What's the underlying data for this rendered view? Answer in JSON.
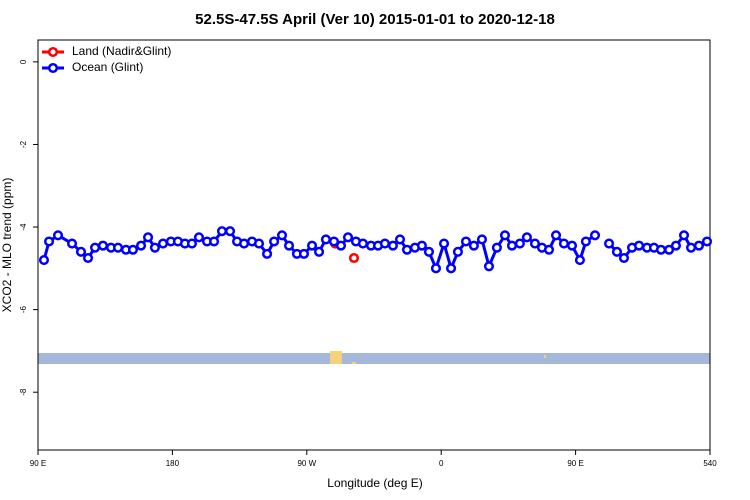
{
  "chart_data": {
    "type": "line",
    "title": "52.5S-47.5S April (Ver 10)   2015-01-01 to 2020-12-18",
    "xlabel": "Longitude (deg E)",
    "ylabel": "XCO2 - MLO trend (ppm)",
    "xlim": [
      90,
      540
    ],
    "ylim": [
      -9.4,
      0.53
    ],
    "xticks": [
      {
        "value": 90,
        "label": "90 E"
      },
      180,
      {
        "value": 270,
        "label": "90 W"
      },
      {
        "value": 360,
        "label": "0"
      },
      {
        "value": 450,
        "label": "90 E"
      },
      540
    ],
    "yticks": [
      0,
      -2,
      -4,
      -6,
      -8
    ],
    "legend": "top-left",
    "series": [
      {
        "name": "Land (Nadir&Glint)",
        "color": "#ff0000",
        "x": [
          289,
          295,
          301.6
        ],
        "values": [
          -4.4,
          null,
          -4.75
        ]
      },
      {
        "name": "Ocean (Glint)",
        "color": "#0000ff",
        "x": [
          94,
          97.4,
          103.4,
          112.8,
          118.8,
          123.5,
          128.2,
          133.5,
          138.9,
          143.6,
          148.9,
          153.6,
          159,
          163.7,
          168.3,
          173.7,
          179,
          183.7,
          188.4,
          193.1,
          197.8,
          203.2,
          207.9,
          213.2,
          218.6,
          223.3,
          228,
          233.3,
          238,
          243.4,
          248.1,
          253.4,
          258.1,
          263.4,
          268.1,
          273.5,
          278.2,
          282.8,
          288.2,
          292.9,
          297.6,
          302.9,
          307.6,
          313,
          317.7,
          322.3,
          327.7,
          332.4,
          337.1,
          342.4,
          347.1,
          351.8,
          356.5,
          361.9,
          366.6,
          371.2,
          376.6,
          381.9,
          387.3,
          392,
          397.3,
          402.7,
          407.4,
          412.7,
          417.4,
          422.8,
          427.5,
          432.2,
          436.9,
          442.2,
          447.6,
          452.9,
          456.9,
          463,
          467.5,
          472.4,
          477.7,
          482.4,
          487.8,
          492.5,
          497.8,
          502.5,
          507.2,
          512.6,
          517.2,
          522.6,
          527.3,
          532.6,
          538
        ],
        "values": [
          -4.8,
          -4.35,
          -4.2,
          -4.4,
          -4.6,
          -4.75,
          -4.5,
          -4.45,
          -4.5,
          -4.5,
          -4.55,
          -4.55,
          -4.45,
          -4.25,
          -4.5,
          -4.4,
          -4.35,
          -4.35,
          -4.4,
          -4.4,
          -4.25,
          -4.35,
          -4.35,
          -4.1,
          -4.1,
          -4.35,
          -4.4,
          -4.35,
          -4.4,
          -4.65,
          -4.35,
          -4.2,
          -4.45,
          -4.65,
          -4.65,
          -4.45,
          -4.6,
          -4.3,
          -4.35,
          -4.45,
          -4.25,
          -4.35,
          -4.4,
          -4.45,
          -4.45,
          -4.4,
          -4.45,
          -4.3,
          -4.55,
          -4.5,
          -4.45,
          -4.6,
          -5.0,
          -4.4,
          -5.0,
          -4.6,
          -4.35,
          -4.45,
          -4.3,
          -4.95,
          -4.5,
          -4.2,
          -4.45,
          -4.4,
          -4.25,
          -4.4,
          -4.5,
          -4.55,
          -4.2,
          -4.4,
          -4.45,
          -4.8,
          -4.35,
          -4.2,
          null,
          -4.4,
          -4.6,
          -4.75,
          -4.5,
          -4.45,
          -4.5,
          -4.5,
          -4.55,
          -4.55,
          -4.45,
          -4.2,
          -4.5,
          -4.45,
          -4.35
        ]
      }
    ]
  }
}
